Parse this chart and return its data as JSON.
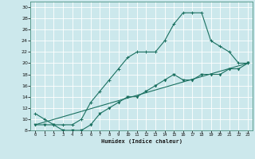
{
  "title": "",
  "xlabel": "Humidex (Indice chaleur)",
  "bg_color": "#cce8ec",
  "grid_color": "#ffffff",
  "line_color": "#1a7060",
  "xlim": [
    -0.5,
    23.5
  ],
  "ylim": [
    8,
    31
  ],
  "xticks": [
    0,
    1,
    2,
    3,
    4,
    5,
    6,
    7,
    8,
    9,
    10,
    11,
    12,
    13,
    14,
    15,
    16,
    17,
    18,
    19,
    20,
    21,
    22,
    23
  ],
  "yticks": [
    8,
    10,
    12,
    14,
    16,
    18,
    20,
    22,
    24,
    26,
    28,
    30
  ],
  "series1_x": [
    0,
    1,
    2,
    3,
    4,
    5,
    6,
    7,
    8,
    9,
    10,
    11,
    12,
    13,
    14,
    15,
    16,
    17,
    18,
    19,
    20,
    21,
    22,
    23
  ],
  "series1_y": [
    11,
    10,
    9,
    9,
    9,
    10,
    13,
    15,
    17,
    19,
    21,
    22,
    22,
    22,
    24,
    27,
    29,
    29,
    29,
    24,
    23,
    22,
    20,
    20
  ],
  "series2_x": [
    0,
    1,
    2,
    3,
    4,
    5,
    6,
    7,
    8,
    9,
    10,
    11,
    12,
    13,
    14,
    15,
    16,
    17,
    18,
    19,
    20,
    21,
    22,
    23
  ],
  "series2_y": [
    9,
    9,
    9,
    8,
    8,
    8,
    9,
    11,
    12,
    13,
    14,
    14,
    15,
    16,
    17,
    18,
    17,
    17,
    18,
    18,
    18,
    19,
    19,
    20
  ],
  "series3_x": [
    0,
    23
  ],
  "series3_y": [
    9,
    20
  ]
}
